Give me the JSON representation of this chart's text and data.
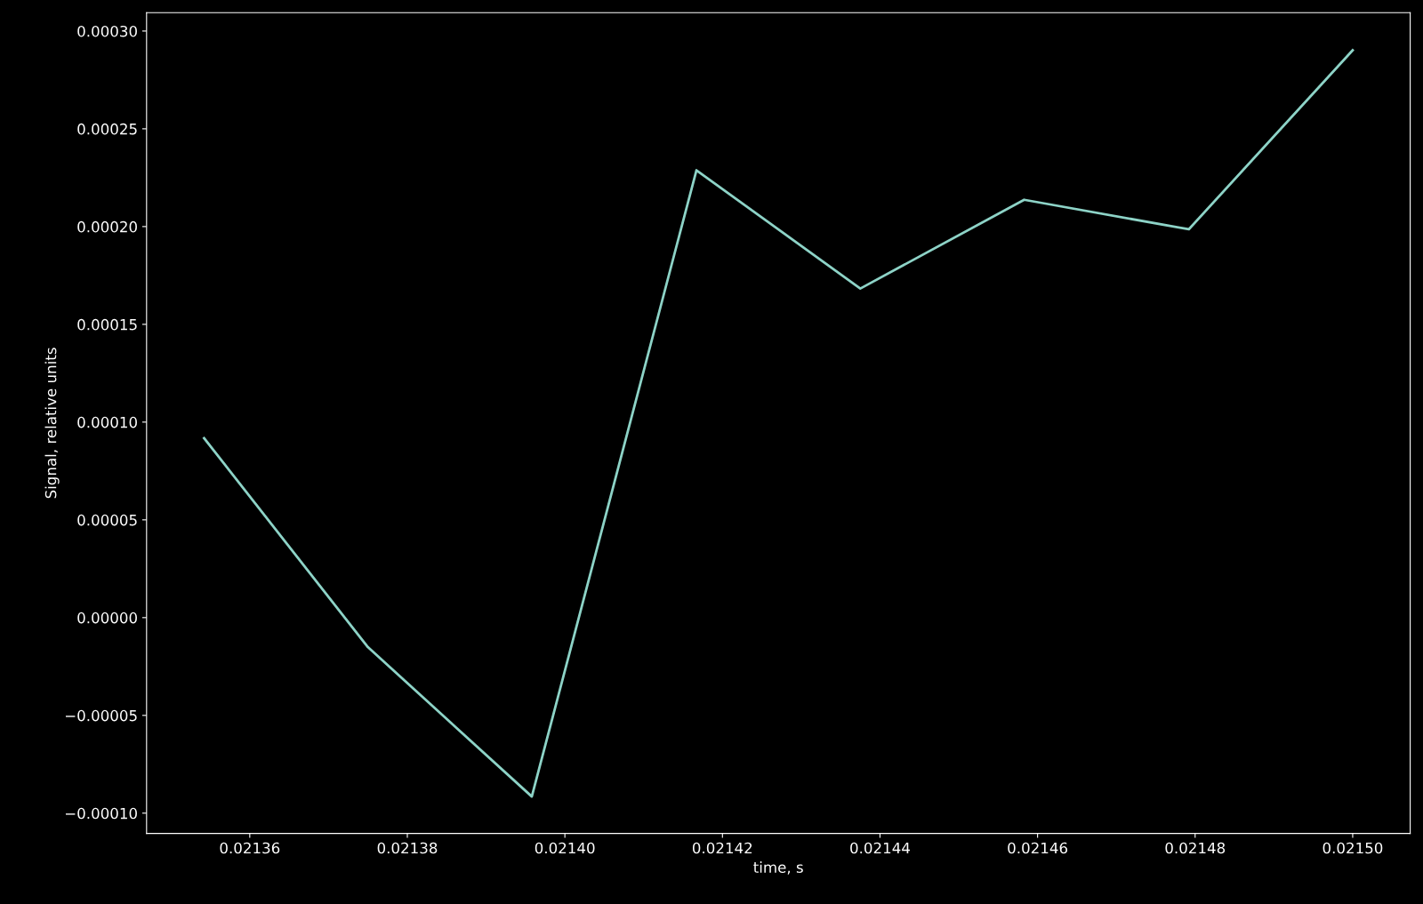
{
  "chart_data": {
    "type": "line",
    "xlabel": "time, s",
    "ylabel": "Signal, relative units",
    "x": [
      0.0213542,
      0.021375,
      0.0213958,
      0.0214167,
      0.0214375,
      0.0214583,
      0.0214792,
      0.0215
    ],
    "series": [
      {
        "color": "#8dd3c7",
        "values": [
          9.18e-05,
          -1.51e-05,
          -9.15e-05,
          0.0002288,
          0.0001683,
          0.0002137,
          0.0001986,
          0.0002902
        ]
      }
    ],
    "xlim": [
      0.0213469,
      0.0215073
    ],
    "ylim": [
      -0.0001104,
      0.0003094
    ],
    "xticks": [
      {
        "value": 0.02136,
        "label": "0.02136"
      },
      {
        "value": 0.02138,
        "label": "0.02138"
      },
      {
        "value": 0.0214,
        "label": "0.02140"
      },
      {
        "value": 0.02142,
        "label": "0.02142"
      },
      {
        "value": 0.02144,
        "label": "0.02144"
      },
      {
        "value": 0.02146,
        "label": "0.02146"
      },
      {
        "value": 0.02148,
        "label": "0.02148"
      },
      {
        "value": 0.0215,
        "label": "0.02150"
      }
    ],
    "yticks": [
      {
        "value": -0.0001,
        "label": "−0.00010"
      },
      {
        "value": -5e-05,
        "label": "−0.00005"
      },
      {
        "value": 0,
        "label": "0.00000"
      },
      {
        "value": 5e-05,
        "label": "0.00005"
      },
      {
        "value": 0.0001,
        "label": "0.00010"
      },
      {
        "value": 0.00015,
        "label": "0.00015"
      },
      {
        "value": 0.0002,
        "label": "0.00020"
      },
      {
        "value": 0.00025,
        "label": "0.00025"
      },
      {
        "value": 0.0003,
        "label": "0.00030"
      }
    ],
    "grid": false,
    "line_style": "solid"
  }
}
